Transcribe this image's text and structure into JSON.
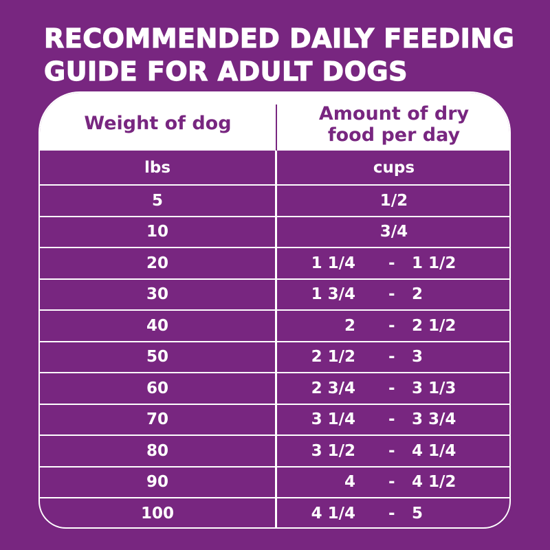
{
  "title": {
    "line1": "RECOMMENDED DAILY FEEDING",
    "line2": "GUIDE FOR ADULT DOGS"
  },
  "colors": {
    "background": "#782680",
    "accent_text": "#782680",
    "header_bg": "#ffffff",
    "cell_text": "#ffffff"
  },
  "table": {
    "headers": {
      "weight": "Weight of dog",
      "amount_line1": "Amount of dry",
      "amount_line2": "food per day"
    },
    "units": {
      "weight": "lbs",
      "amount": "cups"
    },
    "rows": [
      {
        "weight": "5",
        "amount": "1/2"
      },
      {
        "weight": "10",
        "amount": "3/4"
      },
      {
        "weight": "20",
        "low": "1 1/4",
        "sep": "-",
        "high": "1 1/2"
      },
      {
        "weight": "30",
        "low": "1 3/4",
        "sep": "-",
        "high": "2"
      },
      {
        "weight": "40",
        "low": "2",
        "sep": "-",
        "high": "2 1/2"
      },
      {
        "weight": "50",
        "low": "2 1/2",
        "sep": "-",
        "high": "3"
      },
      {
        "weight": "60",
        "low": "2 3/4",
        "sep": "-",
        "high": "3 1/3"
      },
      {
        "weight": "70",
        "low": "3 1/4",
        "sep": "-",
        "high": "3 3/4"
      },
      {
        "weight": "80",
        "low": "3 1/2",
        "sep": "-",
        "high": "4 1/4"
      },
      {
        "weight": "90",
        "low": "4",
        "sep": "-",
        "high": "4 1/2"
      },
      {
        "weight": "100",
        "low": "4 1/4",
        "sep": "-",
        "high": "5"
      }
    ]
  }
}
